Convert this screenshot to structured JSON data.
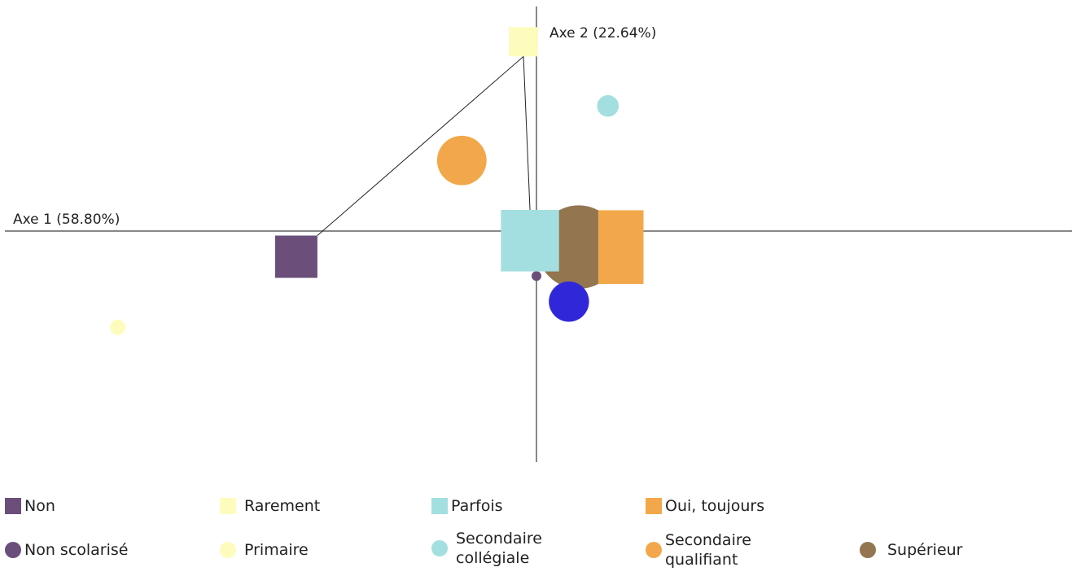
{
  "chart_data": {
    "type": "scatter",
    "title": "",
    "axes": {
      "axis1_label": "Axe 1 (58.80%)",
      "axis2_label": "Axe 2 (22.64%)",
      "xlim": [
        -1.65,
        1.65
      ],
      "ylim": [
        -0.7,
        0.7
      ]
    },
    "frequency_series": {
      "marker": "square",
      "points": [
        {
          "name": "Non",
          "color": "#6b4f7a",
          "x": -0.74,
          "y": -0.08,
          "weight": 0.7
        },
        {
          "name": "Rarement",
          "color": "#fefcbd",
          "x": -0.04,
          "y": 0.59,
          "weight": 0.6
        },
        {
          "name": "Parfois",
          "color": "#a3dfe0",
          "x": -0.02,
          "y": -0.03,
          "weight": 1.0
        },
        {
          "name": "Oui, toujours",
          "color": "#f2a84a",
          "x": 0.26,
          "y": -0.05,
          "weight": 1.1
        }
      ]
    },
    "education_series": {
      "marker": "circle",
      "points": [
        {
          "name": "Non scolarisé",
          "color": "#6b4f7a",
          "x": 0.0,
          "y": -0.14,
          "weight": 0.1
        },
        {
          "name": "Primaire",
          "color": "#fefcbd",
          "x": -1.29,
          "y": -0.3,
          "weight": 0.25
        },
        {
          "name": "Secondaire collégiale",
          "color": "#a3dfe0",
          "x": 0.22,
          "y": 0.39,
          "weight": 0.35
        },
        {
          "name": "Secondaire qualifiant",
          "color": "#f2a84a",
          "x": -0.23,
          "y": 0.22,
          "weight": 0.8
        },
        {
          "name": "Supérieur",
          "color": "#937650",
          "x": 0.13,
          "y": -0.05,
          "weight": 1.35
        },
        {
          "name": "",
          "color": "#3028d8",
          "x": 0.1,
          "y": -0.22,
          "weight": 0.65
        }
      ]
    },
    "connectors": [
      {
        "from": "Rarement",
        "to": "Non"
      },
      {
        "from": "Rarement",
        "to": "Parfois"
      }
    ]
  },
  "legend": {
    "row1": [
      {
        "label": "Non",
        "color": "#6b4f7a",
        "shape": "square"
      },
      {
        "label": "Rarement",
        "color": "#fefcbd",
        "shape": "square"
      },
      {
        "label": "Parfois",
        "color": "#a3dfe0",
        "shape": "square"
      },
      {
        "label": "Oui, toujours",
        "color": "#f2a84a",
        "shape": "square"
      }
    ],
    "row2": [
      {
        "label": "Non scolarisé",
        "color": "#6b4f7a",
        "shape": "circle"
      },
      {
        "label": "Primaire",
        "color": "#fefcbd",
        "shape": "circle"
      },
      {
        "label": "Secondaire\ncollégiale",
        "color": "#a3dfe0",
        "shape": "circle"
      },
      {
        "label": "Secondaire\nqualifiant",
        "color": "#f2a84a",
        "shape": "circle"
      },
      {
        "label": "Supérieur",
        "color": "#937650",
        "shape": "circle"
      }
    ]
  }
}
